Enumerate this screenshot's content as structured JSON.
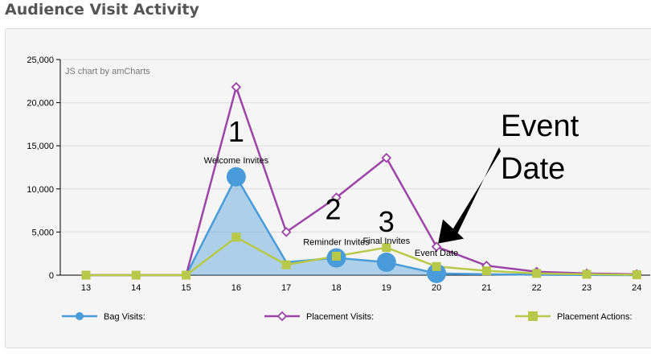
{
  "page": {
    "title": "Audience Visit Activity"
  },
  "chart_data": {
    "type": "line",
    "credit": "JS chart by amCharts",
    "categories": [
      "13",
      "14",
      "15",
      "16",
      "17",
      "18",
      "19",
      "20",
      "21",
      "22",
      "23",
      "24"
    ],
    "ylim": [
      0,
      25000
    ],
    "yticks": [
      0,
      5000,
      10000,
      15000,
      20000,
      25000
    ],
    "ytick_labels": [
      "0",
      "5,000",
      "10,000",
      "15,000",
      "20,000",
      "25,000"
    ],
    "grid": true,
    "legend_position": "bottom",
    "series": [
      {
        "name": "Bag Visits:",
        "color": "#4a9bd9",
        "marker": "circle",
        "filled_area": true,
        "values": [
          0,
          0,
          0,
          11400,
          1500,
          2000,
          1500,
          200,
          100,
          50,
          20,
          0
        ]
      },
      {
        "name": "Placement Visits:",
        "color": "#9c44a7",
        "marker": "diamond",
        "filled_area": false,
        "values": [
          0,
          0,
          0,
          21800,
          5000,
          9000,
          13600,
          3300,
          1100,
          400,
          200,
          100
        ]
      },
      {
        "name": "Placement Actions:",
        "color": "#b8c94a",
        "marker": "square",
        "filled_area": false,
        "values": [
          0,
          0,
          0,
          4400,
          1200,
          2200,
          3200,
          1000,
          500,
          200,
          100,
          50
        ]
      }
    ],
    "event_markers": [
      {
        "category": "16",
        "value": 11400,
        "number": "1",
        "label": "Welcome Invites"
      },
      {
        "category": "18",
        "value": 2000,
        "number": "2",
        "label": "Reminder Invites"
      },
      {
        "category": "19",
        "value": 1500,
        "number": "3",
        "label": "Final Invites"
      },
      {
        "category": "20",
        "value": 200,
        "number": "",
        "label": "Event Date"
      }
    ],
    "callout": {
      "line1": "Event",
      "line2": "Date",
      "points_to_category": "20"
    }
  }
}
